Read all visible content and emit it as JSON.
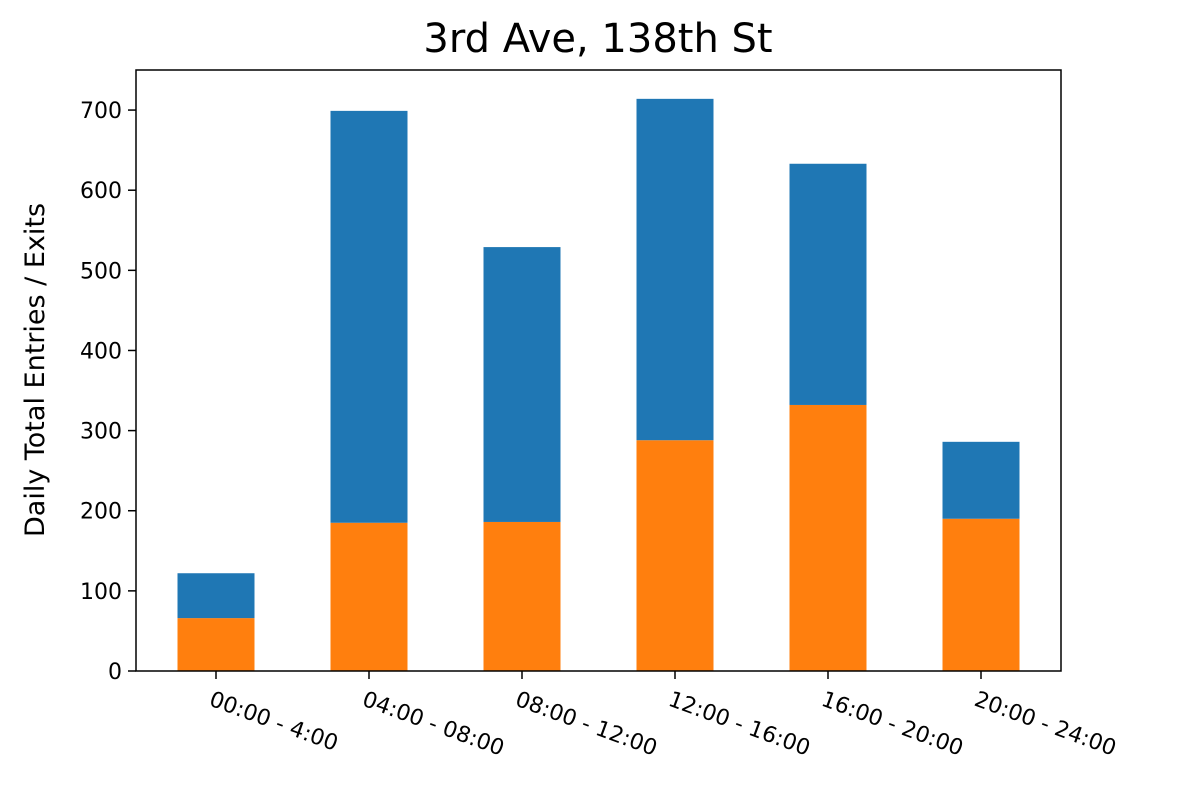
{
  "chart_data": {
    "type": "bar",
    "stacked": true,
    "title": "3rd Ave, 138th St",
    "xlabel": "",
    "ylabel": "Daily Total Entries / Exits",
    "categories": [
      "00:00 - 4:00",
      "04:00 - 08:00",
      "08:00 - 12:00",
      "12:00 - 16:00",
      "16:00 - 20:00",
      "20:00 - 24:00"
    ],
    "series": [
      {
        "color": "#ff7f0e",
        "values": [
          66,
          185,
          186,
          288,
          332,
          190
        ]
      },
      {
        "color": "#1f77b4",
        "values": [
          56,
          514,
          343,
          426,
          301,
          96
        ]
      }
    ],
    "ylim": [
      0,
      750
    ],
    "yticks": [
      0,
      100,
      200,
      300,
      400,
      500,
      600,
      700
    ],
    "grid": false,
    "legend": "none"
  }
}
